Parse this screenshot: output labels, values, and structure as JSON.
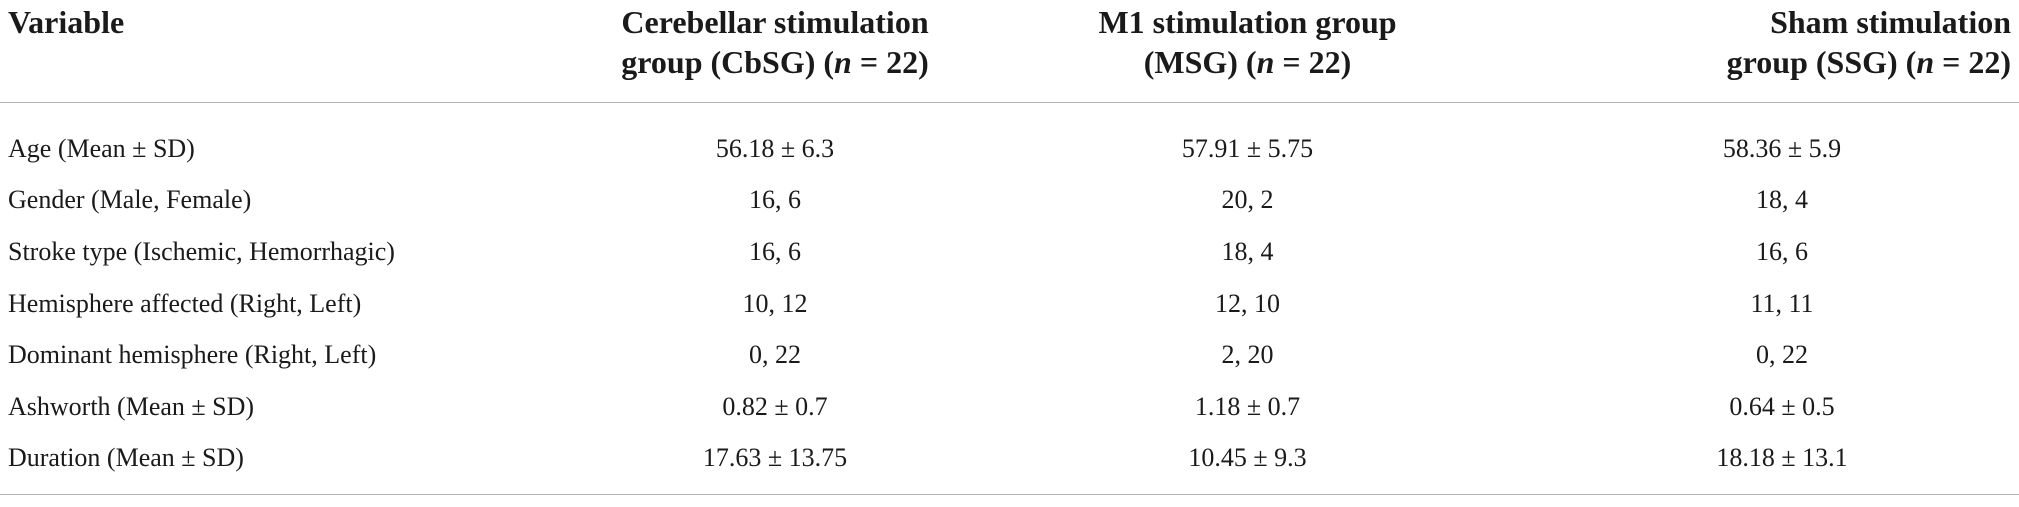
{
  "table": {
    "header": {
      "variable": "Variable",
      "cbsg_line1": "Cerebellar stimulation",
      "cbsg_line2_pre": "group (CbSG) (",
      "cbsg_n": "n",
      "cbsg_line2_post": " = 22)",
      "msg_line1": "M1 stimulation group",
      "msg_line2_pre": "(MSG) (",
      "msg_n": "n",
      "msg_line2_post": " = 22)",
      "ssg_line1": "Sham stimulation",
      "ssg_line2_pre": "group (SSG) (",
      "ssg_n": "n",
      "ssg_line2_post": " = 22)"
    },
    "rows": [
      {
        "variable": "Age (Mean ± SD)",
        "cbsg": "56.18 ± 6.3",
        "msg": "57.91 ± 5.75",
        "ssg": "58.36 ± 5.9"
      },
      {
        "variable": "Gender (Male, Female)",
        "cbsg": "16, 6",
        "msg": "20, 2",
        "ssg": "18, 4"
      },
      {
        "variable": "Stroke type (Ischemic, Hemorrhagic)",
        "cbsg": "16, 6",
        "msg": "18, 4",
        "ssg": "16, 6"
      },
      {
        "variable": "Hemisphere affected (Right, Left)",
        "cbsg": "10, 12",
        "msg": "12, 10",
        "ssg": "11, 11"
      },
      {
        "variable": "Dominant hemisphere (Right, Left)",
        "cbsg": "0, 22",
        "msg": "2, 20",
        "ssg": "0, 22"
      },
      {
        "variable": "Ashworth (Mean ± SD)",
        "cbsg": "0.82 ± 0.7",
        "msg": "1.18 ± 0.7",
        "ssg": "0.64 ± 0.5"
      },
      {
        "variable": "Duration (Mean ± SD)",
        "cbsg": "17.63 ± 13.75",
        "msg": "10.45 ± 9.3",
        "ssg": "18.18 ± 13.1"
      }
    ]
  }
}
